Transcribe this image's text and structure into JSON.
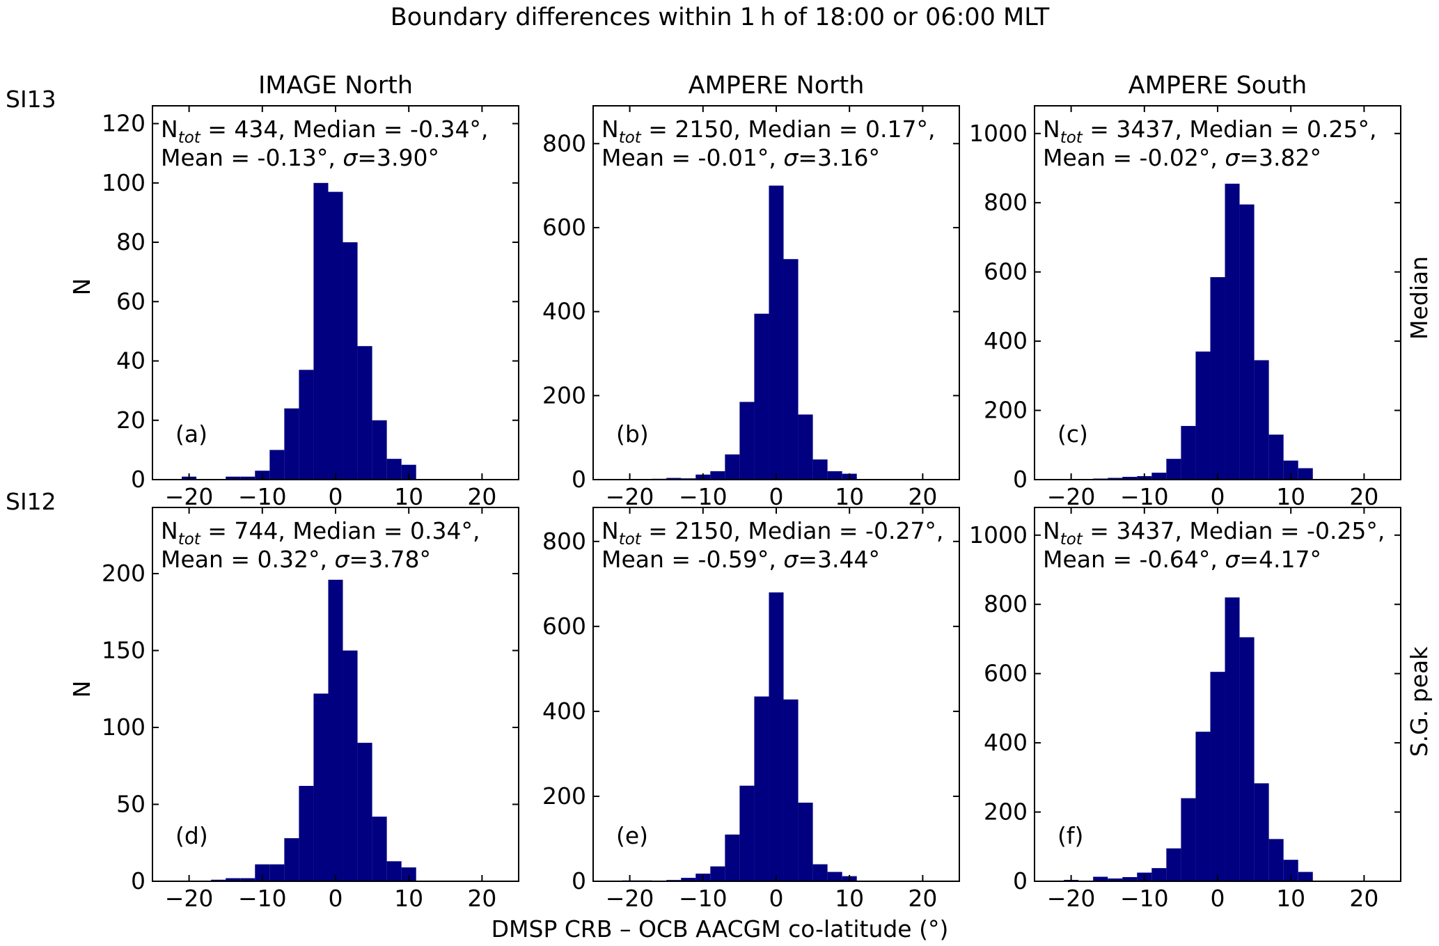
{
  "figure": {
    "title": "Boundary differences within 1 h of 18:00 or 06:00 MLT",
    "xlabel": "DMSP CRB – OCB AACGM co-latitude (°)",
    "ylabel": "N",
    "row_labels_left": [
      "SI13",
      "SI12"
    ],
    "row_labels_right": [
      "Median",
      "S.G. peak"
    ],
    "bar_color": "#000080"
  },
  "chart_data": [
    {
      "type": "bar",
      "panel": "(a)",
      "title": "IMAGE North",
      "stats_line1": {
        "n": "N",
        "sub": "tot",
        "text": " = 434, Median = -0.34°,"
      },
      "stats_line2": {
        "text1": "Mean = -0.13°, ",
        "sigma": "σ",
        "text2": "=3.90°"
      },
      "xlim": [
        -25,
        25
      ],
      "ylim": [
        0,
        126
      ],
      "xticks": [
        -20,
        -10,
        0,
        10,
        20
      ],
      "xtick_labels": [
        "−20",
        "−10",
        "0",
        "10",
        "20"
      ],
      "yticks": [
        0,
        20,
        40,
        60,
        80,
        100,
        120
      ],
      "bins": [
        [
          -21,
          -19,
          1
        ],
        [
          -15,
          -13,
          1
        ],
        [
          -13,
          -11,
          1
        ],
        [
          -11,
          -9,
          3
        ],
        [
          -9,
          -7,
          10
        ],
        [
          -7,
          -5,
          24
        ],
        [
          -5,
          -3,
          37
        ],
        [
          -3,
          -1,
          100
        ],
        [
          -1,
          1,
          97
        ],
        [
          1,
          3,
          80
        ],
        [
          3,
          5,
          45
        ],
        [
          5,
          7,
          20
        ],
        [
          7,
          9,
          7
        ],
        [
          9,
          11,
          5
        ]
      ]
    },
    {
      "type": "bar",
      "panel": "(b)",
      "title": "AMPERE North",
      "stats_line1": {
        "n": "N",
        "sub": "tot",
        "text": " = 2150, Median = 0.17°,"
      },
      "stats_line2": {
        "text1": "Mean = -0.01°, ",
        "sigma": "σ",
        "text2": "=3.16°"
      },
      "xlim": [
        -25,
        25
      ],
      "ylim": [
        0,
        890
      ],
      "xticks": [
        -20,
        -10,
        0,
        10,
        20
      ],
      "xtick_labels": [
        "−20",
        "−10",
        "0",
        "10",
        "20"
      ],
      "yticks": [
        0,
        200,
        400,
        600,
        800
      ],
      "bins": [
        [
          -17,
          -15,
          2
        ],
        [
          -15,
          -13,
          4
        ],
        [
          -13,
          -11,
          3
        ],
        [
          -11,
          -9,
          12
        ],
        [
          -9,
          -7,
          20
        ],
        [
          -7,
          -5,
          60
        ],
        [
          -5,
          -3,
          185
        ],
        [
          -3,
          -1,
          395
        ],
        [
          -1,
          1,
          700
        ],
        [
          1,
          3,
          525
        ],
        [
          3,
          5,
          155
        ],
        [
          5,
          7,
          48
        ],
        [
          7,
          9,
          20
        ],
        [
          9,
          11,
          14
        ]
      ]
    },
    {
      "type": "bar",
      "panel": "(c)",
      "title": "AMPERE South",
      "stats_line1": {
        "n": "N",
        "sub": "tot",
        "text": " = 3437, Median = 0.25°,"
      },
      "stats_line2": {
        "text1": "Mean = -0.02°, ",
        "sigma": "σ",
        "text2": "=3.82°"
      },
      "xlim": [
        -25,
        25
      ],
      "ylim": [
        0,
        1080
      ],
      "xticks": [
        -20,
        -10,
        0,
        10,
        20
      ],
      "xtick_labels": [
        "−20",
        "−10",
        "0",
        "10",
        "20"
      ],
      "yticks": [
        0,
        200,
        400,
        600,
        800,
        1000
      ],
      "bins": [
        [
          -17,
          -15,
          3
        ],
        [
          -15,
          -13,
          5
        ],
        [
          -13,
          -11,
          8
        ],
        [
          -11,
          -9,
          10
        ],
        [
          -9,
          -7,
          20
        ],
        [
          -7,
          -5,
          60
        ],
        [
          -5,
          -3,
          155
        ],
        [
          -3,
          -1,
          370
        ],
        [
          -1,
          1,
          585
        ],
        [
          1,
          3,
          855
        ],
        [
          3,
          5,
          795
        ],
        [
          5,
          7,
          345
        ],
        [
          7,
          9,
          130
        ],
        [
          9,
          11,
          55
        ],
        [
          11,
          13,
          33
        ]
      ]
    },
    {
      "type": "bar",
      "panel": "(d)",
      "title": "",
      "stats_line1": {
        "n": "N",
        "sub": "tot",
        "text": " = 744, Median = 0.34°,"
      },
      "stats_line2": {
        "text1": "Mean = 0.32°, ",
        "sigma": "σ",
        "text2": "=3.78°"
      },
      "xlim": [
        -25,
        25
      ],
      "ylim": [
        0,
        243
      ],
      "xticks": [
        -20,
        -10,
        0,
        10,
        20
      ],
      "xtick_labels": [
        "−20",
        "−10",
        "0",
        "10",
        "20"
      ],
      "yticks": [
        0,
        50,
        100,
        150,
        200
      ],
      "bins": [
        [
          -17,
          -15,
          1
        ],
        [
          -15,
          -13,
          2
        ],
        [
          -13,
          -11,
          2
        ],
        [
          -11,
          -9,
          11
        ],
        [
          -9,
          -7,
          11
        ],
        [
          -7,
          -5,
          28
        ],
        [
          -5,
          -3,
          62
        ],
        [
          -3,
          -1,
          122
        ],
        [
          -1,
          1,
          196
        ],
        [
          1,
          3,
          150
        ],
        [
          3,
          5,
          90
        ],
        [
          5,
          7,
          42
        ],
        [
          7,
          9,
          13
        ],
        [
          9,
          11,
          9
        ]
      ]
    },
    {
      "type": "bar",
      "panel": "(e)",
      "title": "",
      "stats_line1": {
        "n": "N",
        "sub": "tot",
        "text": " = 2150, Median = -0.27°,"
      },
      "stats_line2": {
        "text1": "Mean = -0.59°, ",
        "sigma": "σ",
        "text2": "=3.44°"
      },
      "xlim": [
        -25,
        25
      ],
      "ylim": [
        0,
        880
      ],
      "xticks": [
        -20,
        -10,
        0,
        10,
        20
      ],
      "xtick_labels": [
        "−20",
        "−10",
        "0",
        "10",
        "20"
      ],
      "yticks": [
        0,
        200,
        400,
        600,
        800
      ],
      "bins": [
        [
          -21,
          -19,
          2
        ],
        [
          -19,
          -17,
          2
        ],
        [
          -15,
          -13,
          3
        ],
        [
          -13,
          -11,
          8
        ],
        [
          -11,
          -9,
          18
        ],
        [
          -9,
          -7,
          35
        ],
        [
          -7,
          -5,
          110
        ],
        [
          -5,
          -3,
          225
        ],
        [
          -3,
          -1,
          435
        ],
        [
          -1,
          1,
          680
        ],
        [
          1,
          3,
          428
        ],
        [
          3,
          5,
          185
        ],
        [
          5,
          7,
          40
        ],
        [
          7,
          9,
          22
        ],
        [
          9,
          11,
          12
        ]
      ]
    },
    {
      "type": "bar",
      "panel": "(f)",
      "title": "",
      "stats_line1": {
        "n": "N",
        "sub": "tot",
        "text": " = 3437, Median = -0.25°,"
      },
      "stats_line2": {
        "text1": "Mean = -0.64°, ",
        "sigma": "σ",
        "text2": "=4.17°"
      },
      "xlim": [
        -25,
        25
      ],
      "ylim": [
        0,
        1080
      ],
      "xticks": [
        -20,
        -10,
        0,
        10,
        20
      ],
      "xtick_labels": [
        "−20",
        "−10",
        "0",
        "10",
        "20"
      ],
      "yticks": [
        0,
        200,
        400,
        600,
        800,
        1000
      ],
      "bins": [
        [
          -21,
          -19,
          4
        ],
        [
          -17,
          -15,
          13
        ],
        [
          -15,
          -13,
          8
        ],
        [
          -13,
          -11,
          12
        ],
        [
          -11,
          -9,
          25
        ],
        [
          -9,
          -7,
          38
        ],
        [
          -7,
          -5,
          95
        ],
        [
          -5,
          -3,
          240
        ],
        [
          -3,
          -1,
          432
        ],
        [
          -1,
          1,
          605
        ],
        [
          1,
          3,
          820
        ],
        [
          3,
          5,
          705
        ],
        [
          5,
          7,
          283
        ],
        [
          7,
          9,
          122
        ],
        [
          9,
          11,
          62
        ],
        [
          11,
          13,
          27
        ]
      ]
    }
  ]
}
